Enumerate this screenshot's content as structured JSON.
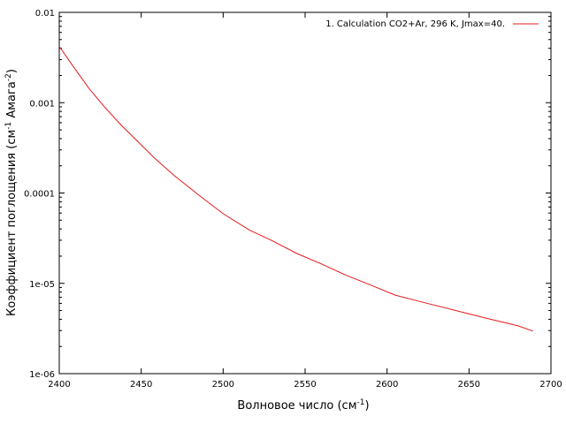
{
  "chart_data": {
    "type": "line",
    "scale": {
      "x": "linear",
      "y": "log"
    },
    "xlim": [
      2400,
      2700
    ],
    "ylim": [
      1e-06,
      0.01
    ],
    "x_ticks": [
      {
        "value": 2400,
        "label": "2400"
      },
      {
        "value": 2450,
        "label": "2450"
      },
      {
        "value": 2500,
        "label": "2500"
      },
      {
        "value": 2550,
        "label": "2550"
      },
      {
        "value": 2600,
        "label": "2600"
      },
      {
        "value": 2650,
        "label": "2650"
      },
      {
        "value": 2700,
        "label": "2700"
      }
    ],
    "y_ticks": [
      {
        "value": 0.01,
        "label": "0.01"
      },
      {
        "value": 0.001,
        "label": "0.001"
      },
      {
        "value": 0.0001,
        "label": "0.0001"
      },
      {
        "value": 1e-05,
        "label": "1e-05"
      },
      {
        "value": 1e-06,
        "label": "1e-06"
      }
    ],
    "xlabel": {
      "base": "Волновое число (см",
      "sup": "-1",
      "tail": ")"
    },
    "ylabel": {
      "base": "Коэффициент поглощения (см",
      "sup1": "-1",
      "mid": " Амага",
      "sup2": "-2",
      "tail": ")"
    },
    "legend_position": "top-right",
    "grid": false,
    "series": [
      {
        "name": "1. Calculation  CO2+Ar, 296 K, Jmax=40.",
        "color": "#e41a1c",
        "x": [
          2400,
          2408,
          2418,
          2428,
          2438,
          2448,
          2458,
          2470,
          2485,
          2500,
          2516,
          2530,
          2545,
          2560,
          2575,
          2590,
          2605,
          2620,
          2640,
          2660,
          2680,
          2689
        ],
        "y": [
          0.0042,
          0.0026,
          0.00145,
          0.00088,
          0.00056,
          0.00037,
          0.000245,
          0.000157,
          9.54e-05,
          5.9e-05,
          3.89e-05,
          2.96e-05,
          2.14e-05,
          1.64e-05,
          1.23e-05,
          9.58e-06,
          7.41e-06,
          6.3e-06,
          5.11e-06,
          4.13e-06,
          3.38e-06,
          2.96e-06
        ]
      }
    ]
  }
}
